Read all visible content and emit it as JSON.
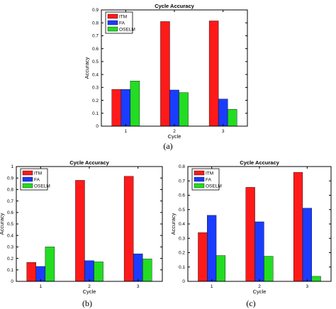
{
  "panel_labels": [
    "(a)",
    "(b)",
    "(c)"
  ],
  "chart_data": [
    {
      "type": "bar",
      "title": "Cycle Accuracy",
      "xlabel": "Cycle",
      "ylabel": "Accuracy",
      "categories": [
        "1",
        "2",
        "3"
      ],
      "ylim": [
        0,
        0.9
      ],
      "yticks": [
        0,
        0.1,
        0.2,
        0.3,
        0.4,
        0.5,
        0.6,
        0.7,
        0.8,
        0.9
      ],
      "ytick_labels": [
        "0",
        "0.1",
        "0.2",
        "0.3",
        "0.4",
        "0.5",
        "0.6",
        "0.7",
        "0.8",
        "0.9"
      ],
      "legend_position": "top-left",
      "series": [
        {
          "name": "ITM",
          "color": "#ff1a1a",
          "values": [
            0.285,
            0.81,
            0.815
          ]
        },
        {
          "name": "FA",
          "color": "#1a3cff",
          "values": [
            0.285,
            0.28,
            0.21
          ]
        },
        {
          "name": "OSELM",
          "color": "#22dd22",
          "values": [
            0.35,
            0.26,
            0.13
          ]
        }
      ]
    },
    {
      "type": "bar",
      "title": "Cycle Accuracy",
      "xlabel": "Cycle",
      "ylabel": "Accuracy",
      "categories": [
        "1",
        "2",
        "3"
      ],
      "ylim": [
        0,
        1
      ],
      "yticks": [
        0,
        0.1,
        0.2,
        0.3,
        0.4,
        0.5,
        0.6,
        0.7,
        0.8,
        0.9,
        1
      ],
      "ytick_labels": [
        "0",
        "0.1",
        "0.2",
        "0.3",
        "0.4",
        "0.5",
        "0.6",
        "0.7",
        "0.8",
        "0.9",
        "1"
      ],
      "legend_position": "top-left",
      "series": [
        {
          "name": "ITM",
          "color": "#ff1a1a",
          "values": [
            0.165,
            0.88,
            0.915
          ]
        },
        {
          "name": "FA",
          "color": "#1a3cff",
          "values": [
            0.13,
            0.18,
            0.24
          ]
        },
        {
          "name": "OSELM",
          "color": "#22dd22",
          "values": [
            0.3,
            0.17,
            0.195
          ]
        }
      ]
    },
    {
      "type": "bar",
      "title": "Cycle Accuracy",
      "xlabel": "Cycle",
      "ylabel": "Accuracy",
      "categories": [
        "1",
        "2",
        "3"
      ],
      "ylim": [
        0,
        0.8
      ],
      "yticks": [
        0,
        0.1,
        0.2,
        0.3,
        0.4,
        0.5,
        0.6,
        0.7,
        0.8
      ],
      "ytick_labels": [
        "0",
        "0.1",
        "0.2",
        "0.3",
        "0.4",
        "0.5",
        "0.6",
        "0.7",
        "0.8"
      ],
      "legend_position": "top-left",
      "series": [
        {
          "name": "ITM",
          "color": "#ff1a1a",
          "values": [
            0.34,
            0.655,
            0.76
          ]
        },
        {
          "name": "FA",
          "color": "#1a3cff",
          "values": [
            0.46,
            0.415,
            0.51
          ]
        },
        {
          "name": "OSELM",
          "color": "#22dd22",
          "values": [
            0.18,
            0.175,
            0.035
          ]
        }
      ]
    }
  ]
}
